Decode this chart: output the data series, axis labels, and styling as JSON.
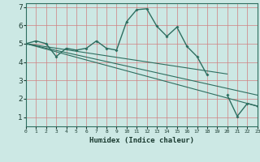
{
  "xlabel": "Humidex (Indice chaleur)",
  "bg_color": "#cce8e4",
  "grid_color": "#d08080",
  "line_color": "#2e6e60",
  "x_data": [
    0,
    1,
    2,
    3,
    4,
    5,
    6,
    7,
    8,
    9,
    10,
    11,
    12,
    13,
    14,
    15,
    16,
    17,
    18,
    19,
    20,
    21,
    22,
    23
  ],
  "y_main": [
    5.0,
    5.15,
    5.0,
    4.3,
    4.75,
    4.65,
    4.75,
    5.15,
    4.75,
    4.65,
    6.2,
    6.85,
    6.9,
    5.95,
    5.4,
    5.9,
    4.85,
    4.3,
    3.3,
    null,
    2.2,
    1.05,
    1.75,
    1.6
  ],
  "trend1_start": 5.0,
  "trend1_end": 3.35,
  "trend2_start": 5.0,
  "trend2_end": 2.2,
  "trend3_start": 5.0,
  "trend3_end": 1.6,
  "xlim": [
    0,
    23
  ],
  "ylim": [
    0.5,
    7.2
  ],
  "yticks": [
    1,
    2,
    3,
    4,
    5,
    6,
    7
  ],
  "xtick_labels": [
    "0",
    "1",
    "2",
    "3",
    "4",
    "5",
    "6",
    "7",
    "8",
    "9",
    "10",
    "11",
    "12",
    "13",
    "14",
    "15",
    "16",
    "17",
    "18",
    "19",
    "20",
    "21",
    "22",
    "23"
  ]
}
